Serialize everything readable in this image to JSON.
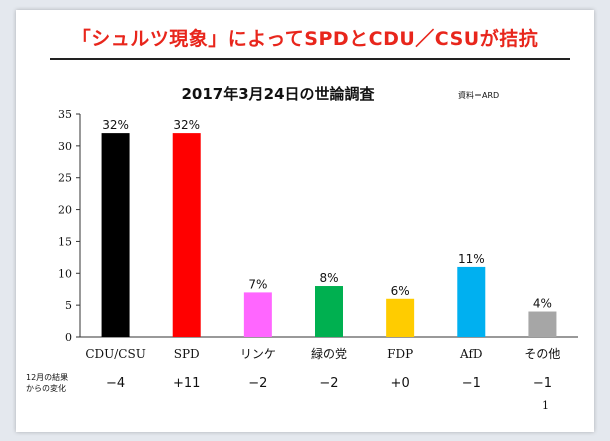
{
  "slide": {
    "title": "「シュルツ現象」によってSPDとCDU／CSUが拮抗",
    "page_number": "1"
  },
  "colors": {
    "title": "#e8261c",
    "bars": [
      "#000000",
      "#ff0000",
      "#ff66ff",
      "#00b050",
      "#ffcc00",
      "#00b0f0",
      "#a6a6a6"
    ]
  },
  "chart_data": {
    "type": "bar",
    "title": "2017年3月24日の世論調査",
    "source_note": "資料＝ARD",
    "categories": [
      "CDU/CSU",
      "SPD",
      "リンケ",
      "緑の党",
      "FDP",
      "AfD",
      "その他"
    ],
    "values": [
      32,
      32,
      7,
      8,
      6,
      11,
      4
    ],
    "data_labels": [
      "32%",
      "32%",
      "7%",
      "8%",
      "6%",
      "11%",
      "4%"
    ],
    "ylim": [
      0,
      35
    ],
    "yticks": [
      0,
      5,
      10,
      15,
      20,
      25,
      30,
      35
    ],
    "grid": false,
    "change_row": {
      "label_line1": "12月の結果",
      "label_line2": "からの変化",
      "values": [
        "−4",
        "+11",
        "−2",
        "−2",
        "+0",
        "−1",
        "−1"
      ]
    }
  }
}
